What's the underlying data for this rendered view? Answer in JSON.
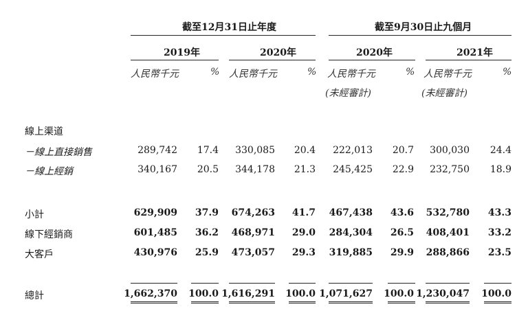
{
  "period_groups": [
    {
      "label": "截至12月31日止年度"
    },
    {
      "label": "截至9月30日止九個月"
    }
  ],
  "years": [
    "2019年",
    "2020年",
    "2020年",
    "2021年"
  ],
  "unit_rmb": "人民幣千元",
  "unit_pct": "%",
  "unaudited": "(未經審計)",
  "rows": [
    {
      "label": "線上渠道",
      "values": []
    },
    {
      "label": "－線上直接銷售",
      "values": [
        "289,742",
        "17.4",
        "330,085",
        "20.4",
        "222,013",
        "20.7",
        "300,030",
        "24.4"
      ]
    },
    {
      "label": "－線上經銷",
      "values": [
        "340,167",
        "20.5",
        "344,178",
        "21.3",
        "245,425",
        "22.9",
        "232,750",
        "18.9"
      ]
    },
    {
      "label": "小計",
      "values": [
        "629,909",
        "37.9",
        "674,263",
        "41.7",
        "467,438",
        "43.6",
        "532,780",
        "43.3"
      ]
    },
    {
      "label": "線下經銷商",
      "values": [
        "601,485",
        "36.2",
        "468,971",
        "29.0",
        "284,304",
        "26.5",
        "408,401",
        "33.2"
      ]
    },
    {
      "label": "大客戶",
      "values": [
        "430,976",
        "25.9",
        "473,057",
        "29.3",
        "319,885",
        "29.9",
        "288,866",
        "23.5"
      ]
    },
    {
      "label": "總計",
      "values": [
        "1,662,370",
        "100.0",
        "1,616,291",
        "100.0",
        "1,071,627",
        "100.0",
        "1,230,047",
        "100.0"
      ]
    }
  ]
}
